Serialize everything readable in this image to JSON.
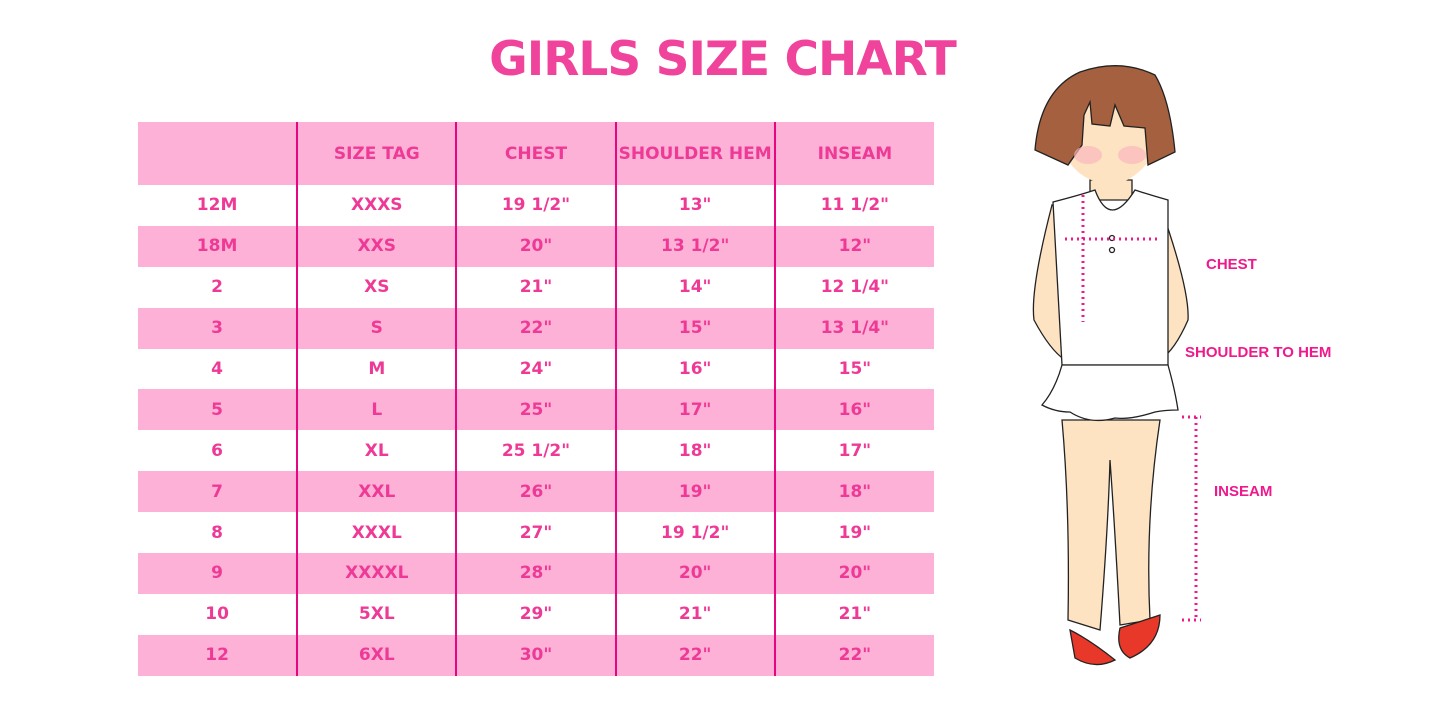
{
  "title": "GIRLS SIZE CHART",
  "table": {
    "headers": [
      "",
      "SIZE TAG",
      "CHEST",
      "SHOULDER HEM",
      "INSEAM"
    ],
    "rows": [
      [
        "12M",
        "XXXS",
        "19 1/2\"",
        "13\"",
        "11 1/2\""
      ],
      [
        "18M",
        "XXS",
        "20\"",
        "13 1/2\"",
        "12\""
      ],
      [
        "2",
        "XS",
        "21\"",
        "14\"",
        "12 1/4\""
      ],
      [
        "3",
        "S",
        "22\"",
        "15\"",
        "13 1/4\""
      ],
      [
        "4",
        "M",
        "24\"",
        "16\"",
        "15\""
      ],
      [
        "5",
        "L",
        "25\"",
        "17\"",
        "16\""
      ],
      [
        "6",
        "XL",
        "25 1/2\"",
        "18\"",
        "17\""
      ],
      [
        "7",
        "XXL",
        "26\"",
        "19\"",
        "18\""
      ],
      [
        "8",
        "XXXL",
        "27\"",
        "19 1/2\"",
        "19\""
      ],
      [
        "9",
        "XXXXL",
        "28\"",
        "20\"",
        "20\""
      ],
      [
        "10",
        "5XL",
        "29\"",
        "21\"",
        "21\""
      ],
      [
        "12",
        "6XL",
        "30\"",
        "22\"",
        "22\""
      ]
    ]
  },
  "figure": {
    "labels": {
      "chest": "CHEST",
      "shoulder_to_hem": "SHOULDER TO HEM",
      "inseam": "INSEAM"
    }
  },
  "colors": {
    "text": "#ee3a96",
    "band": "#fdb1d6",
    "divider": "#e5077f",
    "title": "#f0449c"
  }
}
